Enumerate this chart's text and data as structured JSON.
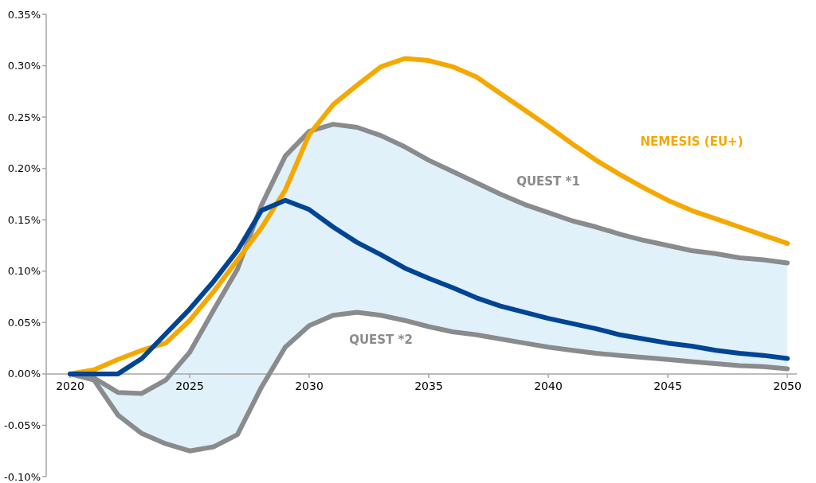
{
  "chart_data": {
    "type": "line",
    "x": [
      2020,
      2021,
      2022,
      2023,
      2024,
      2025,
      2026,
      2027,
      2028,
      2029,
      2030,
      2031,
      2032,
      2033,
      2034,
      2035,
      2036,
      2037,
      2038,
      2039,
      2040,
      2041,
      2042,
      2043,
      2044,
      2045,
      2046,
      2047,
      2048,
      2049,
      2050
    ],
    "series": [
      {
        "name": "QUEST *2",
        "color": "#8a8b8d",
        "values": [
          0,
          -0.006,
          -0.04,
          -0.058,
          -0.068,
          -0.075,
          -0.071,
          -0.059,
          -0.013,
          0.026,
          0.047,
          0.057,
          0.06,
          0.057,
          0.052,
          0.046,
          0.041,
          0.038,
          0.034,
          0.03,
          0.026,
          0.023,
          0.02,
          0.018,
          0.016,
          0.014,
          0.012,
          0.01,
          0.008,
          0.007,
          0.005
        ]
      },
      {
        "name": "QUEST *1",
        "color": "#8a8b8d",
        "values": [
          0,
          -0.004,
          -0.018,
          -0.019,
          -0.006,
          0.021,
          0.062,
          0.102,
          0.164,
          0.212,
          0.236,
          0.243,
          0.24,
          0.232,
          0.221,
          0.208,
          0.197,
          0.186,
          0.175,
          0.165,
          0.157,
          0.149,
          0.143,
          0.136,
          0.13,
          0.125,
          0.12,
          0.117,
          0.113,
          0.111,
          0.108
        ]
      },
      {
        "name": "NEMESIS (EU+)",
        "color": "#f5a800",
        "values": [
          0,
          0.004,
          0.014,
          0.023,
          0.03,
          0.052,
          0.08,
          0.111,
          0.142,
          0.179,
          0.233,
          0.262,
          0.281,
          0.299,
          0.307,
          0.305,
          0.299,
          0.289,
          0.273,
          0.257,
          0.241,
          0.224,
          0.208,
          0.194,
          0.181,
          0.169,
          0.159,
          0.151,
          0.143,
          0.135,
          0.127
        ]
      },
      {
        "color": "#004494",
        "values": [
          0,
          0,
          0,
          0.015,
          0.039,
          0.063,
          0.09,
          0.12,
          0.159,
          0.169,
          0.16,
          0.143,
          0.128,
          0.116,
          0.103,
          0.093,
          0.084,
          0.074,
          0.066,
          0.06,
          0.054,
          0.049,
          0.044,
          0.038,
          0.034,
          0.03,
          0.027,
          0.023,
          0.02,
          0.018,
          0.015
        ],
        "lower": [
          0,
          -0.006,
          -0.04,
          -0.058,
          -0.068,
          -0.075,
          -0.071,
          -0.059,
          -0.013,
          0.026,
          0.047,
          0.057,
          0.06,
          0.057,
          0.052,
          0.046,
          0.041,
          0.038,
          0.034,
          0.03,
          0.026,
          0.023,
          0.02,
          0.018,
          0.016,
          0.014,
          0.012,
          0.01,
          0.008,
          0.007,
          0.005
        ],
        "upper": [
          0,
          -0.004,
          -0.018,
          -0.019,
          -0.006,
          0.021,
          0.062,
          0.102,
          0.164,
          0.212,
          0.236,
          0.243,
          0.24,
          0.232,
          0.221,
          0.208,
          0.197,
          0.186,
          0.175,
          0.165,
          0.157,
          0.149,
          0.143,
          0.136,
          0.13,
          0.125,
          0.12,
          0.117,
          0.113,
          0.111,
          0.108
        ]
      }
    ],
    "xlim": [
      2019,
      2050.4
    ],
    "xticks": [
      2020,
      2025,
      2030,
      2035,
      2040,
      2045,
      2050
    ],
    "ylim": [
      -0.1,
      0.35
    ],
    "yticks": [
      {
        "value": -0.1,
        "label": "-0.10%"
      },
      {
        "value": -0.05,
        "label": "-0.05%"
      },
      {
        "value": 0,
        "label": "0.00%"
      },
      {
        "value": 0.05,
        "label": "0.05%"
      },
      {
        "value": 0.1,
        "label": "0.10%"
      },
      {
        "value": 0.15,
        "label": "0.15%"
      },
      {
        "value": 0.2,
        "label": "0.20%"
      },
      {
        "value": 0.25,
        "label": "0.25%"
      },
      {
        "value": 0.3,
        "label": "0.30%"
      },
      {
        "value": 0.35,
        "label": "0.35%"
      }
    ],
    "grid": false,
    "legend": false,
    "marker": "none",
    "line_style": "solid"
  }
}
